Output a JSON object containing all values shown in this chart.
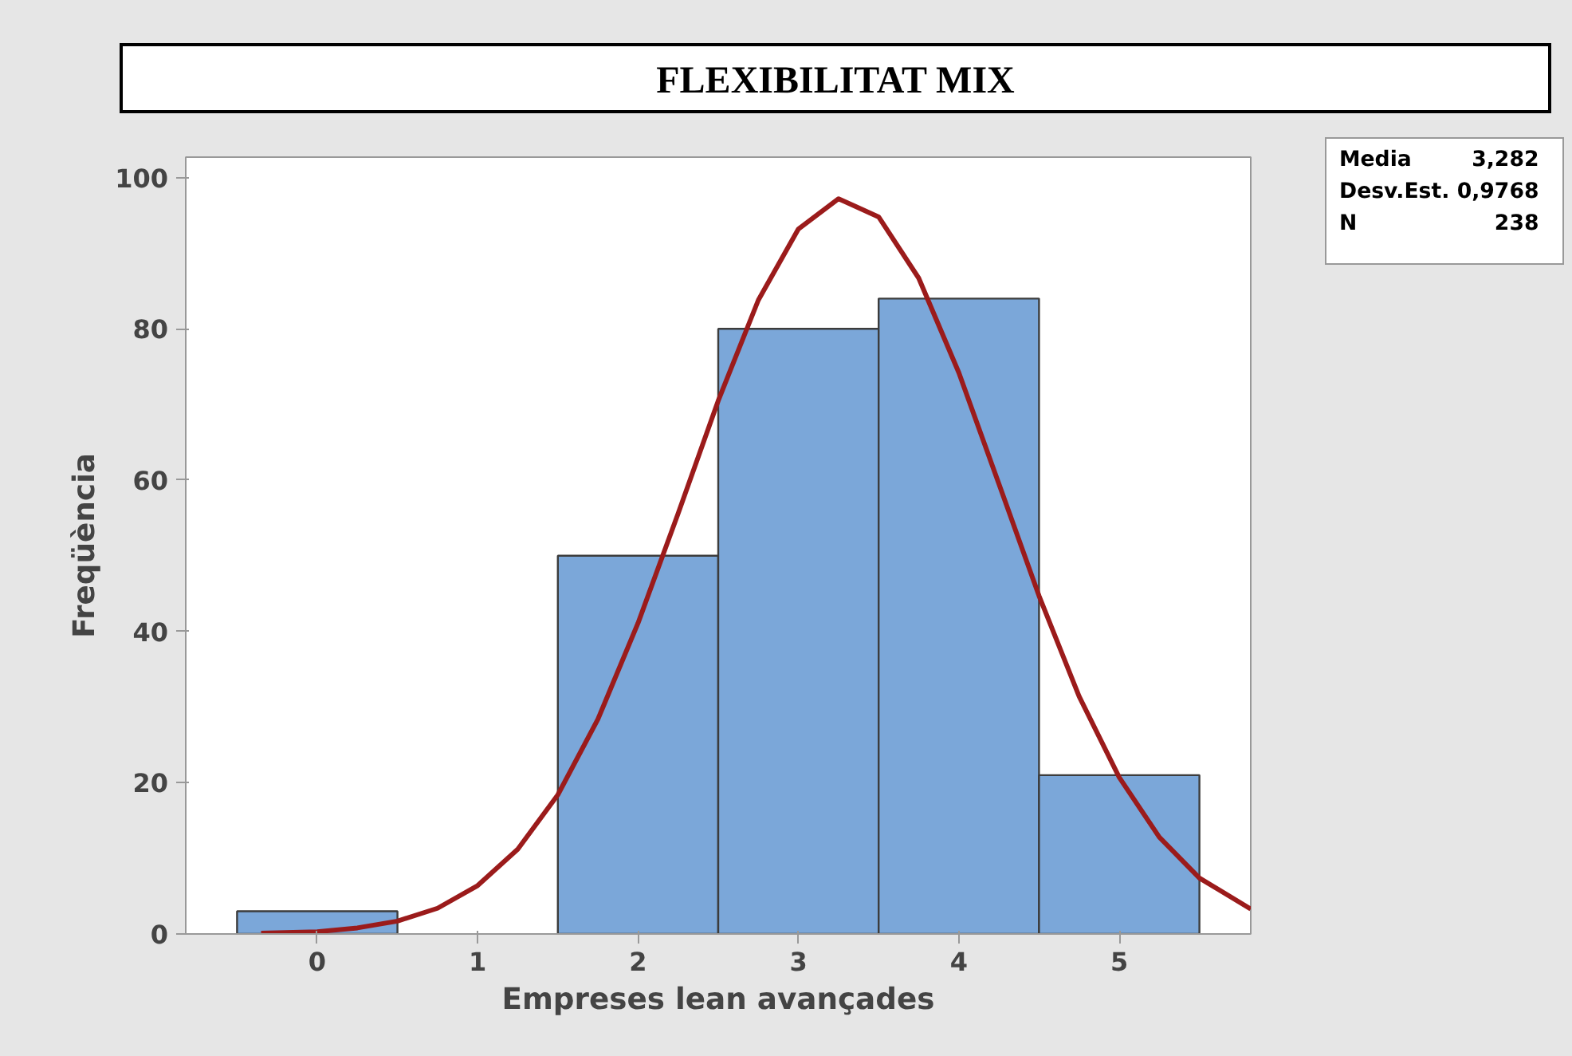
{
  "chart_data": {
    "type": "histogram",
    "title": "FLEXIBILITAT MIX",
    "xlabel": "Empreses lean avançades",
    "ylabel": "Freqüència",
    "bins": [
      -0.5,
      0.5,
      1.5,
      2.5,
      3.5,
      4.5,
      5.5
    ],
    "values": [
      3,
      0,
      50,
      80,
      84,
      21
    ],
    "color": "#7ba7d9",
    "series": [
      {
        "type": "line",
        "color": "#9b1b1b",
        "x": [
          -0.35,
          0,
          0.25,
          0.5,
          0.75,
          1,
          1.25,
          1.5,
          1.75,
          2,
          2.25,
          2.5,
          2.75,
          3,
          3.25,
          3.5,
          3.75,
          4,
          4.25,
          4.5,
          4.75,
          5,
          5.25,
          5.5,
          5.82
        ],
        "values": [
          0.1,
          0.3,
          0.8,
          1.7,
          3.4,
          6.4,
          11.2,
          18.4,
          28.4,
          41.1,
          55.6,
          70.5,
          83.8,
          93.2,
          97.2,
          94.8,
          86.7,
          74.2,
          59.5,
          44.7,
          31.4,
          20.7,
          12.8,
          7.4,
          3.3
        ]
      }
    ],
    "xlim": [
      -0.82,
      5.82
    ],
    "ylim": [
      0,
      102.7
    ],
    "xticks": [
      0,
      1,
      2,
      3,
      4,
      5
    ],
    "yticks": [
      0,
      20,
      40,
      60,
      80,
      100
    ],
    "grid": false,
    "annotations": [
      "Media 3,282",
      "Desv.Est. 0,9768",
      "N 238"
    ]
  }
}
